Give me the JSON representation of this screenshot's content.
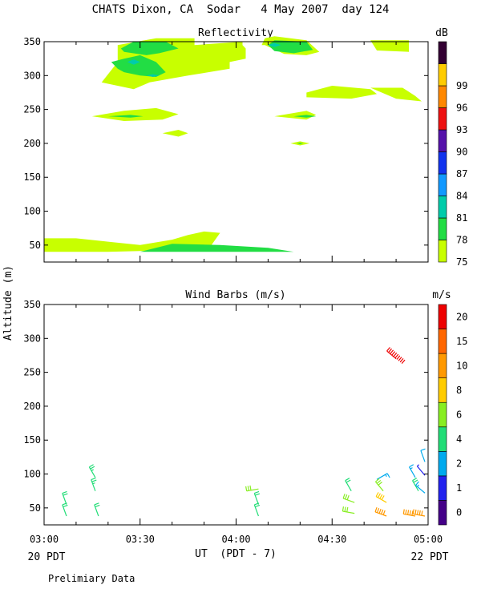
{
  "figure": {
    "title": "CHATS Dixon, CA  Sodar   4 May 2007  day 124",
    "ylabel": "Altitude (m)",
    "xlabel": "UT  (PDT - 7)",
    "left_note": "20 PDT",
    "right_note": "22 PDT",
    "footnote": "Prelimiary Data"
  },
  "chart_data": [
    {
      "type": "heatmap",
      "title": "Reflectivity",
      "colorbar_label": "dB",
      "x_ticks": [
        "03:00",
        "03:30",
        "04:00",
        "04:30",
        "05:00"
      ],
      "x_range_min": [
        180,
        300
      ],
      "y_ticks": [
        50,
        100,
        150,
        200,
        250,
        300,
        350
      ],
      "ylim": [
        25,
        350
      ],
      "colorbar": [
        {
          "label": "75",
          "color": "#c8ff00"
        },
        {
          "label": "78",
          "color": "#22dd44"
        },
        {
          "label": "81",
          "color": "#00ccaa"
        },
        {
          "label": "84",
          "color": "#1199ff"
        },
        {
          "label": "87",
          "color": "#1133ee"
        },
        {
          "label": "90",
          "color": "#5511aa"
        },
        {
          "label": "93",
          "color": "#ee1111"
        },
        {
          "label": "96",
          "color": "#ff8800"
        },
        {
          "label": "99",
          "color": "#ffcc00"
        },
        {
          "label": "",
          "color": "#330033"
        }
      ],
      "regions": [
        {
          "level": 0,
          "t": [
            180,
            180,
            190,
            200,
            210,
            220,
            225,
            228,
            230,
            235,
            232,
            233,
            200,
            180
          ],
          "z": [
            40,
            60,
            60,
            55,
            50,
            58,
            65,
            68,
            70,
            68,
            48,
            44,
            40,
            40
          ]
        },
        {
          "level": 1,
          "t": [
            210,
            215,
            220,
            235,
            250,
            258,
            240,
            210
          ],
          "z": [
            40,
            46,
            52,
            50,
            46,
            40,
            40,
            40
          ]
        },
        {
          "level": 0,
          "t": [
            198,
            203,
            203,
            215,
            227,
            227,
            242,
            242,
            243,
            243,
            238,
            238,
            225,
            213,
            208,
            198
          ],
          "z": [
            290,
            320,
            345,
            355,
            355,
            345,
            350,
            345,
            340,
            325,
            320,
            310,
            300,
            290,
            280,
            290
          ]
        },
        {
          "level": 1,
          "t": [
            201,
            205,
            210,
            215,
            218,
            215,
            210,
            205,
            203,
            201
          ],
          "z": [
            320,
            325,
            330,
            320,
            305,
            298,
            300,
            305,
            310,
            320
          ]
        },
        {
          "level": 1,
          "t": [
            204,
            208,
            218,
            222,
            216,
            212,
            205
          ],
          "z": [
            340,
            350,
            350,
            340,
            333,
            330,
            335
          ]
        },
        {
          "level": 2,
          "t": [
            206,
            208,
            210,
            208
          ],
          "z": [
            320,
            324,
            320,
            316
          ]
        },
        {
          "level": 2,
          "t": [
            212,
            214,
            216,
            214
          ],
          "z": [
            300,
            302,
            300,
            298
          ]
        },
        {
          "level": 0,
          "t": [
            195,
            205,
            215,
            222,
            217,
            205,
            195
          ],
          "z": [
            240,
            248,
            252,
            243,
            235,
            233,
            240
          ]
        },
        {
          "level": 1,
          "t": [
            200,
            207,
            211,
            207,
            200
          ],
          "z": [
            240,
            242,
            240,
            238,
            240
          ]
        },
        {
          "level": 0,
          "t": [
            217,
            222,
            225,
            222,
            217
          ],
          "z": [
            215,
            220,
            215,
            210,
            215
          ]
        },
        {
          "level": 0,
          "t": [
            248,
            249,
            252,
            262,
            266,
            262,
            255,
            249,
            248
          ],
          "z": [
            345,
            355,
            358,
            352,
            335,
            330,
            332,
            345,
            345
          ]
        },
        {
          "level": 1,
          "t": [
            250,
            252,
            262,
            264,
            258,
            252,
            250
          ],
          "z": [
            345,
            352,
            350,
            338,
            333,
            336,
            345
          ]
        },
        {
          "level": 2,
          "t": [
            250,
            252,
            254,
            252
          ],
          "z": [
            345,
            348,
            345,
            342
          ]
        },
        {
          "level": 0,
          "t": [
            252,
            262,
            265,
            262,
            252
          ],
          "z": [
            240,
            248,
            242,
            235,
            240
          ]
        },
        {
          "level": 1,
          "t": [
            258,
            262,
            265,
            262,
            258
          ],
          "z": [
            240,
            242,
            240,
            238,
            240
          ]
        },
        {
          "level": 0,
          "t": [
            257,
            260,
            263,
            260,
            257
          ],
          "z": [
            200,
            203,
            200,
            197,
            200
          ]
        },
        {
          "level": 1,
          "t": [
            259,
            260,
            261,
            260,
            259
          ],
          "z": [
            200,
            201,
            200,
            199,
            200
          ]
        },
        {
          "level": 0,
          "t": [
            262,
            270,
            282,
            284,
            276,
            262
          ],
          "z": [
            275,
            285,
            280,
            273,
            266,
            268
          ]
        },
        {
          "level": 0,
          "t": [
            282,
            292,
            296,
            298,
            290,
            282
          ],
          "z": [
            282,
            282,
            270,
            262,
            266,
            282
          ]
        },
        {
          "level": 0,
          "t": [
            282,
            294,
            294,
            284,
            282
          ],
          "z": [
            352,
            352,
            335,
            337,
            352
          ]
        }
      ]
    },
    {
      "type": "scatter",
      "title": "Wind Barbs (m/s)",
      "colorbar_label": "m/s",
      "x_ticks": [
        "03:00",
        "03:30",
        "04:00",
        "04:30",
        "05:00"
      ],
      "x_range_min": [
        180,
        300
      ],
      "y_ticks": [
        50,
        100,
        150,
        200,
        250,
        300,
        350
      ],
      "ylim": [
        25,
        350
      ],
      "colorbar": [
        {
          "label": "0",
          "color": "#440088"
        },
        {
          "label": "1",
          "color": "#2222ee"
        },
        {
          "label": "2",
          "color": "#00aaee"
        },
        {
          "label": "4",
          "color": "#22dd77"
        },
        {
          "label": "6",
          "color": "#88ee22"
        },
        {
          "label": "8",
          "color": "#ffcc00"
        },
        {
          "label": "10",
          "color": "#ff9900"
        },
        {
          "label": "15",
          "color": "#ff6600"
        },
        {
          "label": "20",
          "color": "#ee0000"
        }
      ],
      "barbs": [
        {
          "t": 187,
          "z": 55,
          "s": 4,
          "dir": 340
        },
        {
          "t": 187,
          "z": 38,
          "s": 4,
          "dir": 340
        },
        {
          "t": 196,
          "z": 95,
          "s": 5,
          "dir": 330
        },
        {
          "t": 196,
          "z": 75,
          "s": 5,
          "dir": 340
        },
        {
          "t": 197,
          "z": 38,
          "s": 4,
          "dir": 340
        },
        {
          "t": 247,
          "z": 78,
          "s": 6,
          "dir": 260
        },
        {
          "t": 247,
          "z": 55,
          "s": 4,
          "dir": 340
        },
        {
          "t": 247,
          "z": 38,
          "s": 4,
          "dir": 340
        },
        {
          "t": 276,
          "z": 75,
          "s": 4,
          "dir": 330
        },
        {
          "t": 277,
          "z": 58,
          "s": 6,
          "dir": 290
        },
        {
          "t": 277,
          "z": 42,
          "s": 6,
          "dir": 280
        },
        {
          "t": 284,
          "z": 92,
          "s": 3,
          "dir": 60
        },
        {
          "t": 286,
          "z": 75,
          "s": 6,
          "dir": 320
        },
        {
          "t": 287,
          "z": 58,
          "s": 8,
          "dir": 300
        },
        {
          "t": 287,
          "z": 38,
          "s": 10,
          "dir": 290
        },
        {
          "t": 290,
          "z": 270,
          "s": 20,
          "dir": 310
        },
        {
          "t": 296,
          "z": 95,
          "s": 3,
          "dir": 330
        },
        {
          "t": 297,
          "z": 75,
          "s": 4,
          "dir": 330
        },
        {
          "t": 296,
          "z": 38,
          "s": 10,
          "dir": 280
        },
        {
          "t": 299,
          "z": 118,
          "s": 2,
          "dir": 340
        },
        {
          "t": 299,
          "z": 98,
          "s": 1,
          "dir": 320
        },
        {
          "t": 299,
          "z": 72,
          "s": 3,
          "dir": 310
        },
        {
          "t": 299,
          "z": 38,
          "s": 10,
          "dir": 280
        }
      ]
    }
  ]
}
